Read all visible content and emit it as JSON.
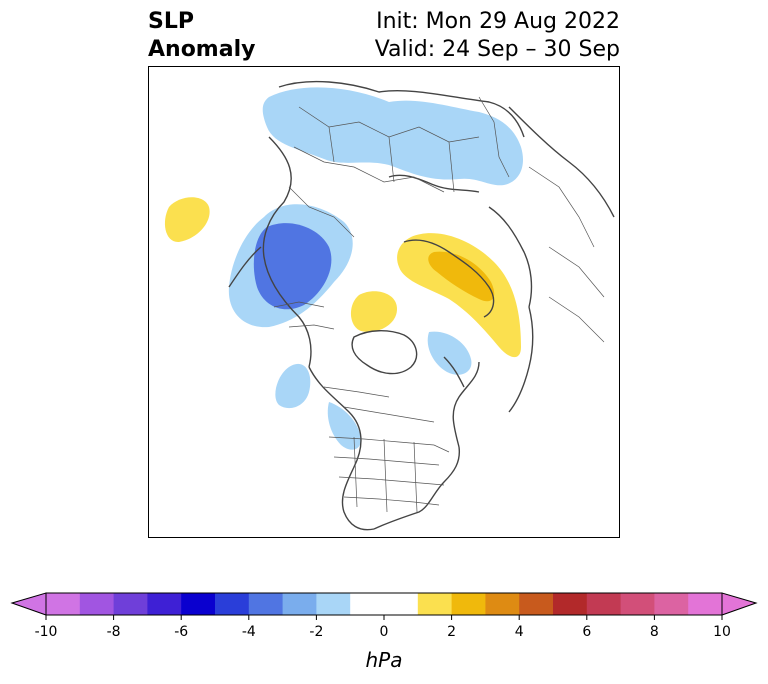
{
  "title": {
    "line1": "SLP",
    "line2": "Anomaly",
    "init": "Init: Mon 29 Aug 2022",
    "valid": "Valid: 24 Sep – 30 Sep"
  },
  "colorbar": {
    "units": "hPa",
    "tick_labels": [
      "-10",
      "-8",
      "-6",
      "-4",
      "-2",
      "0",
      "2",
      "4",
      "6",
      "8",
      "10"
    ],
    "colors": [
      "#d074e4",
      "#a155e1",
      "#6f3fd9",
      "#3e20d5",
      "#0a00cf",
      "#2a3ed9",
      "#5075e2",
      "#7aaded",
      "#a9d6f7",
      "#ffffff",
      "#ffffff",
      "#fbe04f",
      "#f0b90c",
      "#de8b13",
      "#c85a1d",
      "#b2292a",
      "#c23a53",
      "#d24f79",
      "#dc63a2",
      "#e374d7"
    ]
  },
  "map": {
    "projection": "polar-stereographic",
    "anomaly_colors": {
      "neg_light": "#a9d6f7",
      "neg_mid": "#7aaded",
      "neg_strong": "#5075e2",
      "pos_light": "#fbe04f",
      "pos_mid": "#f0b90c"
    }
  }
}
